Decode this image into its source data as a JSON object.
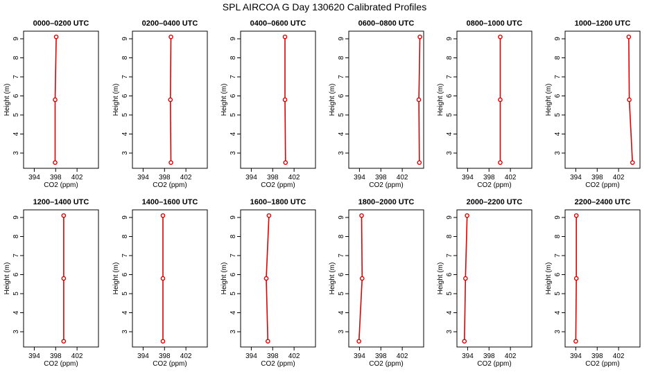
{
  "figure": {
    "title": "SPL AIRCOA G  Day 130620  Calibrated Profiles",
    "line_color": "#dd0000"
  },
  "chart_data": [
    {
      "type": "line",
      "title": "0000–0200 UTC",
      "xlabel": "CO2 (ppm)",
      "ylabel": "Height (m)",
      "xlim": [
        392,
        406
      ],
      "ylim": [
        2.2,
        9.4
      ],
      "xticks": [
        394,
        398,
        402
      ],
      "yticks": [
        3,
        4,
        5,
        6,
        7,
        8,
        9
      ],
      "series": [
        {
          "x": [
            397.9,
            397.9,
            398.1
          ],
          "y": [
            2.5,
            5.8,
            9.1
          ]
        }
      ]
    },
    {
      "type": "line",
      "title": "0200–0400 UTC",
      "xlabel": "CO2 (ppm)",
      "ylabel": "Height (m)",
      "xlim": [
        392,
        406
      ],
      "ylim": [
        2.2,
        9.4
      ],
      "xticks": [
        394,
        398,
        402
      ],
      "yticks": [
        3,
        4,
        5,
        6,
        7,
        8,
        9
      ],
      "series": [
        {
          "x": [
            399.2,
            399.1,
            399.2
          ],
          "y": [
            2.5,
            5.8,
            9.1
          ]
        }
      ]
    },
    {
      "type": "line",
      "title": "0400–0600 UTC",
      "xlabel": "CO2 (ppm)",
      "ylabel": "Height (m)",
      "xlim": [
        392,
        406
      ],
      "ylim": [
        2.2,
        9.4
      ],
      "xticks": [
        394,
        398,
        402
      ],
      "yticks": [
        3,
        4,
        5,
        6,
        7,
        8,
        9
      ],
      "series": [
        {
          "x": [
            400.4,
            400.3,
            400.3
          ],
          "y": [
            2.5,
            5.8,
            9.1
          ]
        }
      ]
    },
    {
      "type": "line",
      "title": "0600–0800 UTC",
      "xlabel": "CO2 (ppm)",
      "ylabel": "Height (m)",
      "xlim": [
        392,
        406
      ],
      "ylim": [
        2.2,
        9.4
      ],
      "xticks": [
        394,
        398,
        402
      ],
      "yticks": [
        3,
        4,
        5,
        6,
        7,
        8,
        9
      ],
      "series": [
        {
          "x": [
            405.2,
            405.1,
            405.3
          ],
          "y": [
            2.5,
            5.8,
            9.1
          ]
        }
      ]
    },
    {
      "type": "line",
      "title": "0800–1000 UTC",
      "xlabel": "CO2 (ppm)",
      "ylabel": "Height (m)",
      "xlim": [
        392,
        406
      ],
      "ylim": [
        2.2,
        9.4
      ],
      "xticks": [
        394,
        398,
        402
      ],
      "yticks": [
        3,
        4,
        5,
        6,
        7,
        8,
        9
      ],
      "series": [
        {
          "x": [
            400.1,
            400.1,
            400.1
          ],
          "y": [
            2.5,
            5.8,
            9.1
          ]
        }
      ]
    },
    {
      "type": "line",
      "title": "1000–1200 UTC",
      "xlabel": "CO2 (ppm)",
      "ylabel": "Height (m)",
      "xlim": [
        392,
        406
      ],
      "ylim": [
        2.2,
        9.4
      ],
      "xticks": [
        394,
        398,
        402
      ],
      "yticks": [
        3,
        4,
        5,
        6,
        7,
        8,
        9
      ],
      "series": [
        {
          "x": [
            404.6,
            404.0,
            403.9
          ],
          "y": [
            2.5,
            5.8,
            9.1
          ]
        }
      ]
    },
    {
      "type": "line",
      "title": "1200–1400 UTC",
      "xlabel": "CO2 (ppm)",
      "ylabel": "Height (m)",
      "xlim": [
        392,
        406
      ],
      "ylim": [
        2.2,
        9.4
      ],
      "xticks": [
        394,
        398,
        402
      ],
      "yticks": [
        3,
        4,
        5,
        6,
        7,
        8,
        9
      ],
      "series": [
        {
          "x": [
            399.5,
            399.5,
            399.5
          ],
          "y": [
            2.5,
            5.8,
            9.1
          ]
        }
      ]
    },
    {
      "type": "line",
      "title": "1400–1600 UTC",
      "xlabel": "CO2 (ppm)",
      "ylabel": "Height (m)",
      "xlim": [
        392,
        406
      ],
      "ylim": [
        2.2,
        9.4
      ],
      "xticks": [
        394,
        398,
        402
      ],
      "yticks": [
        3,
        4,
        5,
        6,
        7,
        8,
        9
      ],
      "series": [
        {
          "x": [
            397.7,
            397.7,
            397.7
          ],
          "y": [
            2.5,
            5.8,
            9.1
          ]
        }
      ]
    },
    {
      "type": "line",
      "title": "1600–1800 UTC",
      "xlabel": "CO2 (ppm)",
      "ylabel": "Height (m)",
      "xlim": [
        392,
        406
      ],
      "ylim": [
        2.2,
        9.4
      ],
      "xticks": [
        394,
        398,
        402
      ],
      "yticks": [
        3,
        4,
        5,
        6,
        7,
        8,
        9
      ],
      "series": [
        {
          "x": [
            397.1,
            396.8,
            397.3
          ],
          "y": [
            2.5,
            5.8,
            9.1
          ]
        }
      ]
    },
    {
      "type": "line",
      "title": "1800–2000 UTC",
      "xlabel": "CO2 (ppm)",
      "ylabel": "Height (m)",
      "xlim": [
        392,
        406
      ],
      "ylim": [
        2.2,
        9.4
      ],
      "xticks": [
        394,
        398,
        402
      ],
      "yticks": [
        3,
        4,
        5,
        6,
        7,
        8,
        9
      ],
      "series": [
        {
          "x": [
            393.9,
            394.5,
            394.4
          ],
          "y": [
            2.5,
            5.8,
            9.1
          ]
        }
      ]
    },
    {
      "type": "line",
      "title": "2000–2200 UTC",
      "xlabel": "CO2 (ppm)",
      "ylabel": "Height (m)",
      "xlim": [
        392,
        406
      ],
      "ylim": [
        2.2,
        9.4
      ],
      "xticks": [
        394,
        398,
        402
      ],
      "yticks": [
        3,
        4,
        5,
        6,
        7,
        8,
        9
      ],
      "series": [
        {
          "x": [
            393.4,
            393.6,
            393.9
          ],
          "y": [
            2.5,
            5.8,
            9.1
          ]
        }
      ]
    },
    {
      "type": "line",
      "title": "2200–2400 UTC",
      "xlabel": "CO2 (ppm)",
      "ylabel": "Height (m)",
      "xlim": [
        392,
        406
      ],
      "ylim": [
        2.2,
        9.4
      ],
      "xticks": [
        394,
        398,
        402
      ],
      "yticks": [
        3,
        4,
        5,
        6,
        7,
        8,
        9
      ],
      "series": [
        {
          "x": [
            394.0,
            394.1,
            394.1
          ],
          "y": [
            2.5,
            5.8,
            9.1
          ]
        }
      ]
    }
  ]
}
